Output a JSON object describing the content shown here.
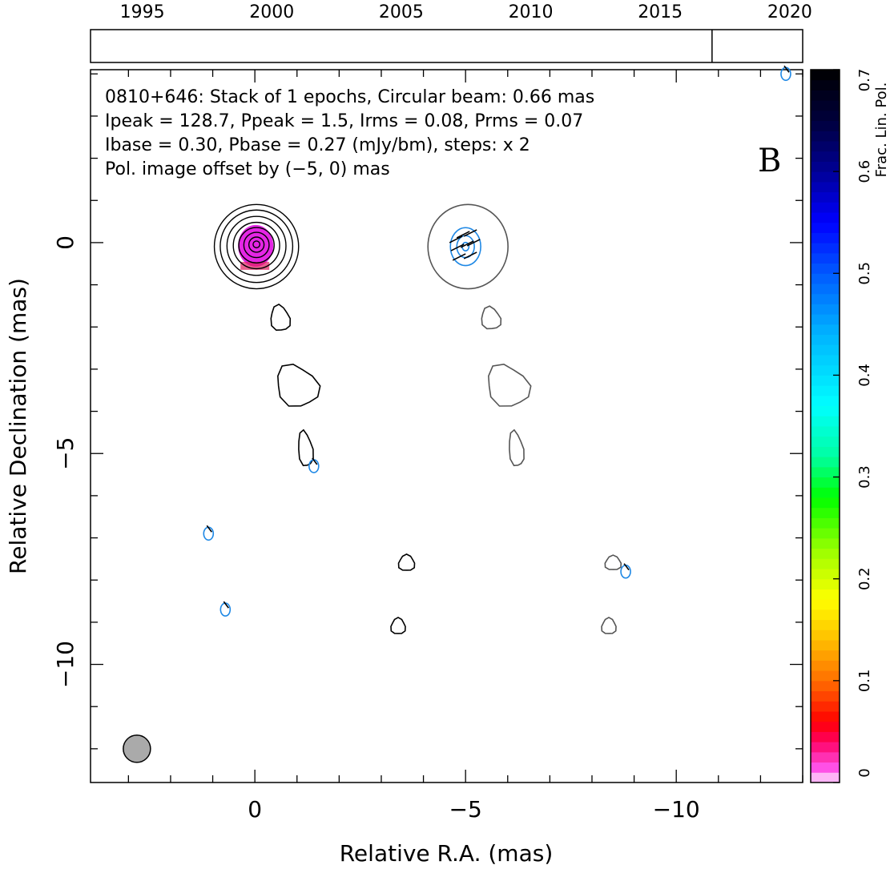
{
  "colors": {
    "contour_primary": "#000000",
    "contour_secondary": "#555555",
    "pol_contour": "#1e88e5",
    "core_fill": "#e000e0",
    "beam_fill": "#aaaaaa"
  },
  "timeline": {
    "ticks": [
      "1995",
      "2000",
      "2005",
      "2010",
      "2015",
      "2020"
    ],
    "tick_years": [
      1995,
      2000,
      2005,
      2010,
      2015,
      2020
    ],
    "range": [
      1993,
      2020.5
    ],
    "epoch_markers": [
      2017.0
    ]
  },
  "annotation": {
    "line1": "0810+646: Stack of 1 epochs, Circular beam: 0.66 mas",
    "line2": "Ipeak = 128.7, Ppeak = 1.5, Irms = 0.08, Prms = 0.07",
    "line3": "Ibase = 0.30, Pbase = 0.27 (mJy/bm), steps: x 2",
    "line4": "Pol. image offset by (−5, 0) mas",
    "panel_letter": "B"
  },
  "colorbar": {
    "label": "Frac. Lin. Pol.",
    "ticks": [
      "0",
      "0.1",
      "0.2",
      "0.3",
      "0.4",
      "0.5",
      "0.6",
      "0.7"
    ],
    "tick_values": [
      0,
      0.1,
      0.2,
      0.3,
      0.4,
      0.5,
      0.6,
      0.7
    ],
    "range": [
      0,
      0.7
    ]
  },
  "chart_data": {
    "type": "contour",
    "source": "0810+646",
    "xlabel": "Relative R.A. (mas)",
    "ylabel": "Relative Declination (mas)",
    "xlim": [
      3.9,
      -13.0
    ],
    "ylim": [
      -12.8,
      4.1
    ],
    "x_ticks": [
      "0",
      "−5",
      "−10"
    ],
    "x_tick_values": [
      0,
      -5,
      -10
    ],
    "y_ticks": [
      "0",
      "−5",
      "−10"
    ],
    "y_tick_values": [
      0,
      -5,
      -10
    ],
    "x_minor_step": 1,
    "y_minor_step": 1,
    "beam": {
      "x": 2.8,
      "y": -12.0,
      "diameter_mas": 0.66
    },
    "core_contour_radii": [
      0.08,
      0.18,
      0.3,
      0.42,
      0.55,
      0.7,
      0.86,
      1.0
    ],
    "pol_core_radii": [
      0.1,
      0.26,
      0.45
    ],
    "blobs_total_intensity": [
      {
        "x": -0.6,
        "y": -1.8
      },
      {
        "x": -1.0,
        "y": -3.4
      },
      {
        "x": -1.2,
        "y": -4.9
      },
      {
        "x": -3.6,
        "y": -7.6
      },
      {
        "x": -3.4,
        "y": -9.1
      }
    ],
    "blobs_offset_image": [
      {
        "x": -5.0,
        "y": 0.0
      },
      {
        "x": -5.6,
        "y": -1.8
      },
      {
        "x": -6.0,
        "y": -3.4
      },
      {
        "x": -6.2,
        "y": -4.9
      },
      {
        "x": -8.5,
        "y": -7.6
      },
      {
        "x": -8.4,
        "y": -9.1
      }
    ],
    "blobs_polarization": [
      {
        "x": -1.4,
        "y": -5.3
      },
      {
        "x": 1.1,
        "y": -6.9
      },
      {
        "x": 0.7,
        "y": -8.7
      },
      {
        "x": -8.8,
        "y": -7.8
      },
      {
        "x": -12.6,
        "y": 4.0
      }
    ]
  }
}
